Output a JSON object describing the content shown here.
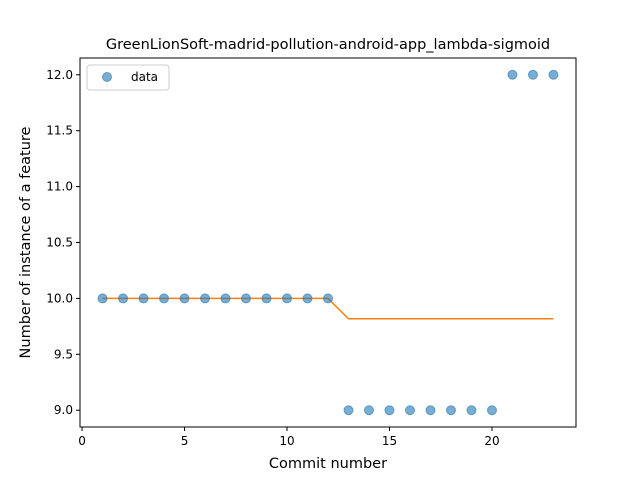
{
  "chart_data": {
    "type": "scatter",
    "title": "GreenLionSoft-madrid-pollution-android-app_lambda-sigmoid",
    "xlabel": "Commit number",
    "ylabel": "Number of instance of a feature",
    "xlim": [
      -0.1,
      24.1
    ],
    "ylim": [
      8.85,
      12.15
    ],
    "xticks": [
      0,
      5,
      10,
      15,
      20
    ],
    "xtick_labels": [
      "0",
      "5",
      "10",
      "15",
      "20"
    ],
    "yticks": [
      9.0,
      9.5,
      10.0,
      10.5,
      11.0,
      11.5,
      12.0
    ],
    "ytick_labels": [
      "9.0",
      "9.5",
      "10.0",
      "10.5",
      "11.0",
      "11.5",
      "12.0"
    ],
    "grid": false,
    "legend": {
      "position": "top-left",
      "entries": [
        "data"
      ]
    },
    "series": [
      {
        "name": "data",
        "kind": "scatter",
        "color": "#1f77b4",
        "x": [
          1,
          2,
          3,
          4,
          5,
          6,
          7,
          8,
          9,
          10,
          11,
          12,
          13,
          14,
          15,
          16,
          17,
          18,
          19,
          20,
          21,
          22,
          23
        ],
        "y": [
          10,
          10,
          10,
          10,
          10,
          10,
          10,
          10,
          10,
          10,
          10,
          10,
          9,
          9,
          9,
          9,
          9,
          9,
          9,
          9,
          12,
          12,
          12
        ]
      },
      {
        "kind": "line",
        "color": "#ff7f0e",
        "x": [
          1,
          2,
          3,
          4,
          5,
          6,
          7,
          8,
          9,
          10,
          11,
          12,
          13,
          14,
          15,
          16,
          17,
          18,
          19,
          20,
          21,
          22,
          23
        ],
        "y": [
          10,
          10,
          10,
          10,
          10,
          10,
          10,
          10,
          10,
          10,
          10,
          10,
          9.818,
          9.818,
          9.818,
          9.818,
          9.818,
          9.818,
          9.818,
          9.818,
          9.818,
          9.818,
          9.818
        ]
      }
    ]
  }
}
